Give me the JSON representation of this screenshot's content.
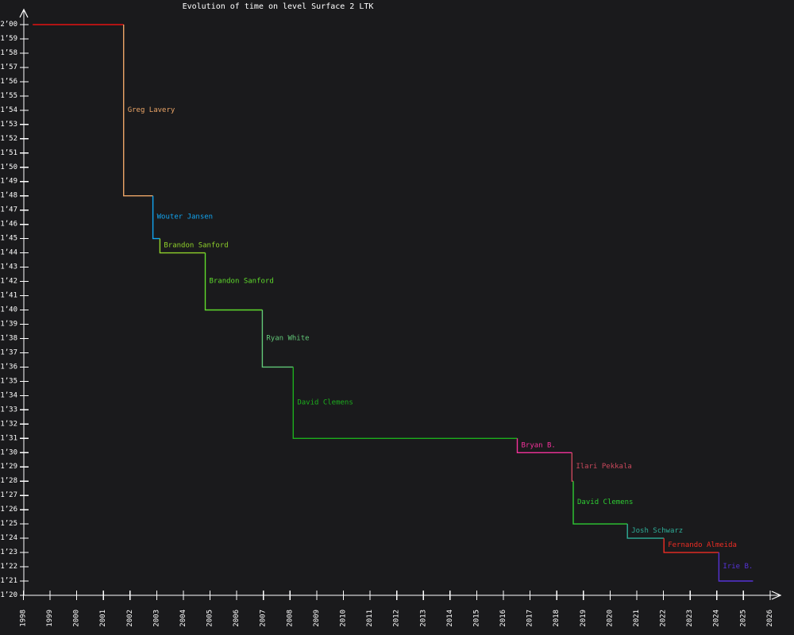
{
  "title": "Evolution of time on level Surface 2 LTK",
  "colors": {
    "background": "#1a1a1c",
    "axis": "#ffffff",
    "tick_text": "#ffffff"
  },
  "chart_data": {
    "type": "line",
    "subtype": "step-record-progression",
    "title": "Evolution of time on level Surface 2 LTK",
    "xlabel": "",
    "ylabel": "",
    "grid": false,
    "legend": "none (labels placed next to each step drop)",
    "x_axis": {
      "ticks": [
        1998,
        1999,
        2000,
        2001,
        2002,
        2003,
        2004,
        2005,
        2006,
        2007,
        2008,
        2009,
        2010,
        2011,
        2012,
        2013,
        2014,
        2015,
        2016,
        2017,
        2018,
        2019,
        2020,
        2021,
        2022,
        2023,
        2024,
        2025,
        2026
      ],
      "range": [
        1998,
        2026.8
      ],
      "tick_label_rotation_deg": -90,
      "arrow": true
    },
    "y_axis": {
      "unit": "minutes'seconds",
      "range_seconds": [
        80,
        120
      ],
      "tick_labels": [
        "1’20",
        "1’21",
        "1’22",
        "1’23",
        "1’24",
        "1’25",
        "1’26",
        "1’27",
        "1’28",
        "1’29",
        "1’30",
        "1’31",
        "1’32",
        "1’33",
        "1’34",
        "1’35",
        "1’36",
        "1’37",
        "1’38",
        "1’39",
        "1’40",
        "1’41",
        "1’42",
        "1’43",
        "1’44",
        "1’45",
        "1’46",
        "1’47",
        "1’48",
        "1’49",
        "1’50",
        "1’51",
        "1’52",
        "1’53",
        "1’54",
        "1’55",
        "1’56",
        "1’57",
        "1’58",
        "1’59",
        "2’00"
      ],
      "arrow": true
    },
    "records": [
      {
        "holder": "",
        "time_label": "2’00",
        "time_seconds": 120,
        "start_year": 1998.35,
        "end_year": 2001.76,
        "color": "#e31212"
      },
      {
        "holder": "Greg Lavery",
        "time_label": "1’48",
        "time_seconds": 108,
        "start_year": 2001.76,
        "end_year": 2002.86,
        "color": "#eba567"
      },
      {
        "holder": "Wouter Jansen",
        "time_label": "1’45",
        "time_seconds": 105,
        "start_year": 2002.86,
        "end_year": 2003.12,
        "color": "#12a6f2"
      },
      {
        "holder": "Brandon Sanford",
        "time_label": "1’44",
        "time_seconds": 104,
        "start_year": 2003.12,
        "end_year": 2004.82,
        "color": "#90d22b"
      },
      {
        "holder": "Brandon Sanford",
        "time_label": "1’40",
        "time_seconds": 100,
        "start_year": 2004.82,
        "end_year": 2006.96,
        "color": "#5fdb2c"
      },
      {
        "holder": "Ryan White",
        "time_label": "1’36",
        "time_seconds": 96,
        "start_year": 2006.96,
        "end_year": 2008.12,
        "color": "#62c878"
      },
      {
        "holder": "David Clemens",
        "time_label": "1’31",
        "time_seconds": 91,
        "start_year": 2008.12,
        "end_year": 2016.52,
        "color": "#1cae1c"
      },
      {
        "holder": "Bryan B.",
        "time_label": "1’30",
        "time_seconds": 90,
        "start_year": 2016.52,
        "end_year": 2018.57,
        "color": "#f5329b"
      },
      {
        "holder": "Ilari Pekkala",
        "time_label": "1’28",
        "time_seconds": 88,
        "start_year": 2018.57,
        "end_year": 2018.62,
        "color": "#c9485b"
      },
      {
        "holder": "David Clemens",
        "time_label": "1’25",
        "time_seconds": 85,
        "start_year": 2018.62,
        "end_year": 2020.65,
        "color": "#2ecc33"
      },
      {
        "holder": "Josh Schwarz",
        "time_label": "1’24",
        "time_seconds": 84,
        "start_year": 2020.65,
        "end_year": 2022.02,
        "color": "#2ead97"
      },
      {
        "holder": "Fernando Almeida",
        "time_label": "1’23",
        "time_seconds": 83,
        "start_year": 2022.02,
        "end_year": 2024.08,
        "color": "#ef2d24"
      },
      {
        "holder": "Irie B.",
        "time_label": "1’21",
        "time_seconds": 81,
        "start_year": 2024.08,
        "end_year": 2025.36,
        "color": "#5533d6"
      }
    ]
  }
}
